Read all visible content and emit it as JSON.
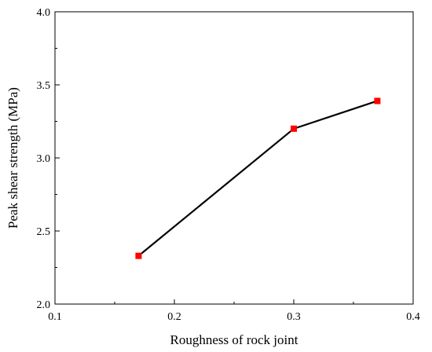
{
  "chart_data": {
    "type": "line",
    "title": "",
    "xlabel": "Roughness of  rock joint",
    "ylabel": "Peak shear strength (MPa)",
    "xlim": [
      0.1,
      0.4
    ],
    "ylim": [
      2.0,
      4.0
    ],
    "x_ticks": [
      "0.1",
      "0.2",
      "0.3",
      "0.4"
    ],
    "y_ticks": [
      "2.0",
      "2.5",
      "3.0",
      "3.5",
      "4.0"
    ],
    "grid": false,
    "legend": "none",
    "series": [
      {
        "x": [
          0.17,
          0.3,
          0.37
        ],
        "y": [
          2.33,
          3.2,
          3.39
        ],
        "line_color": "#000000",
        "marker": "square",
        "marker_color": "#ff0000"
      }
    ]
  }
}
